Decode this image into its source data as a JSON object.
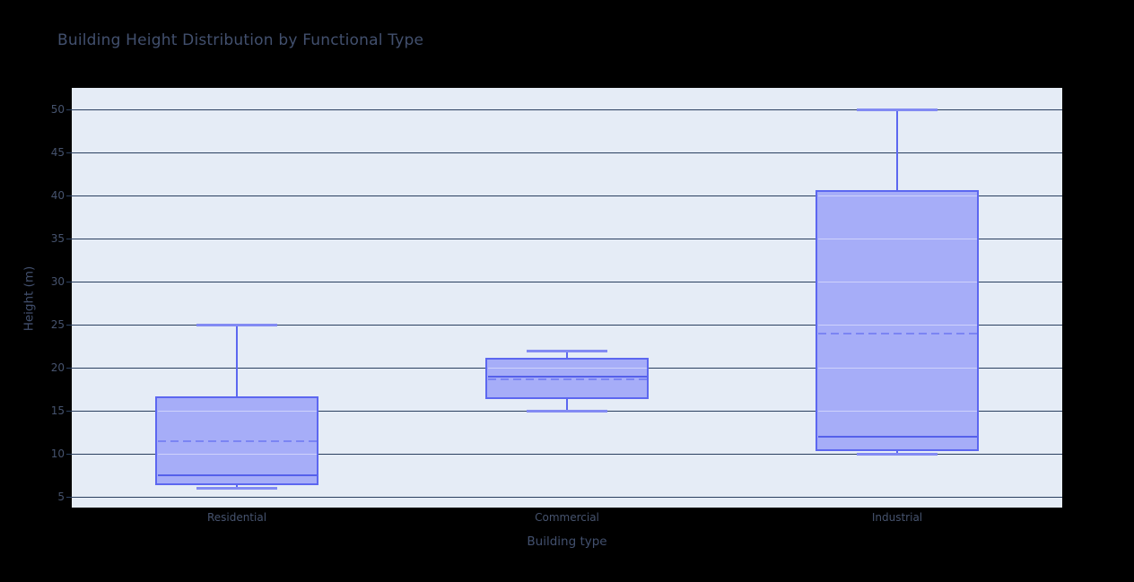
{
  "title": "Building Height Distribution by Functional Type",
  "chart_data": {
    "type": "box",
    "title": "Building Height Distribution by Functional Type",
    "xlabel": "Building type",
    "ylabel": "Height (m)",
    "categories": [
      "Residential",
      "Commercial",
      "Industrial"
    ],
    "series": [
      {
        "name": "Residential",
        "min": 6,
        "q1": 6.5,
        "median": 7.5,
        "q3": 16.5,
        "max": 25,
        "mean": 11.5
      },
      {
        "name": "Commercial",
        "min": 15,
        "q1": 16.5,
        "median": 19,
        "q3": 21,
        "max": 22,
        "mean": 18.7
      },
      {
        "name": "Industrial",
        "min": 10,
        "q1": 10.5,
        "median": 12,
        "q3": 40.5,
        "max": 50,
        "mean": 24
      }
    ],
    "yticks": [
      5,
      10,
      15,
      20,
      25,
      30,
      35,
      40,
      45,
      50
    ],
    "ylim": [
      3.75,
      52.6
    ],
    "grid": true,
    "legend": false,
    "median_style": "solid",
    "mean_style": "dashed"
  },
  "colors": {
    "page_bg": "#000000",
    "plot_bg": "#e5ecf6",
    "grid": "#2a3f5f",
    "text": "#46536e",
    "box_line": "#5c67f0",
    "box_fill": "#a6adf8",
    "whisker_cap": "#828af3",
    "median": "#5560ea",
    "mean": "#7b84f3"
  }
}
